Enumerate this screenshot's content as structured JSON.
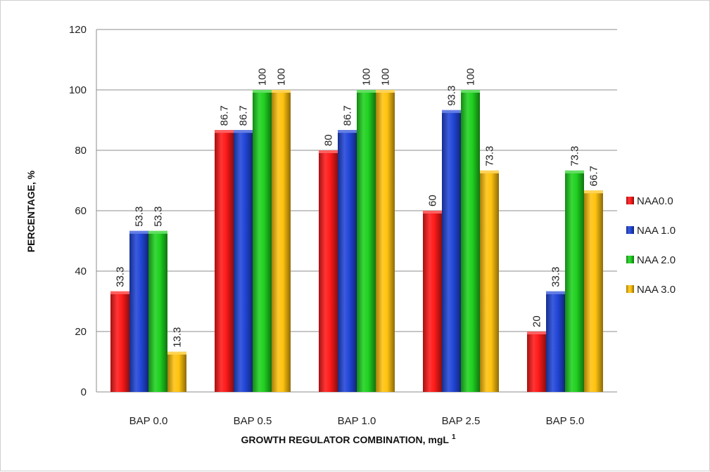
{
  "chart_data": {
    "type": "bar",
    "title": "",
    "xlabel": "GROWTH REGULATOR COMBINATION, mgL",
    "xlabel_superscript": "1",
    "ylabel": "PERCENTAGE, %",
    "ylim": [
      0,
      120
    ],
    "yticks": [
      0,
      20,
      40,
      60,
      80,
      100,
      120
    ],
    "grid": true,
    "legend_position": "right",
    "categories": [
      "BAP 0.0",
      "BAP 0.5",
      "BAP 1.0",
      "BAP 2.5",
      "BAP 5.0"
    ],
    "series": [
      {
        "name": "NAA0.0",
        "color": "#ff1a1a",
        "values": [
          33.3,
          86.7,
          80,
          60,
          20
        ],
        "labels": [
          "33.3",
          "86.7",
          "80",
          "60",
          "20"
        ]
      },
      {
        "name": "NAA 1.0",
        "color": "#2146d8",
        "values": [
          53.3,
          86.7,
          86.7,
          93.3,
          33.3
        ],
        "labels": [
          "53.3",
          "86.7",
          "86.7",
          "93.3",
          "33.3"
        ]
      },
      {
        "name": "NAA 2.0",
        "color": "#1fd11f",
        "values": [
          53.3,
          100,
          100,
          100,
          73.3
        ],
        "labels": [
          "53.3",
          "100",
          "100",
          "100",
          "73.3"
        ]
      },
      {
        "name": "NAA 3.0",
        "color": "#ffc20e",
        "values": [
          13.3,
          100,
          100,
          73.3,
          66.7
        ],
        "labels": [
          "13.3",
          "100",
          "100",
          "73.3",
          "66.7"
        ]
      }
    ]
  }
}
